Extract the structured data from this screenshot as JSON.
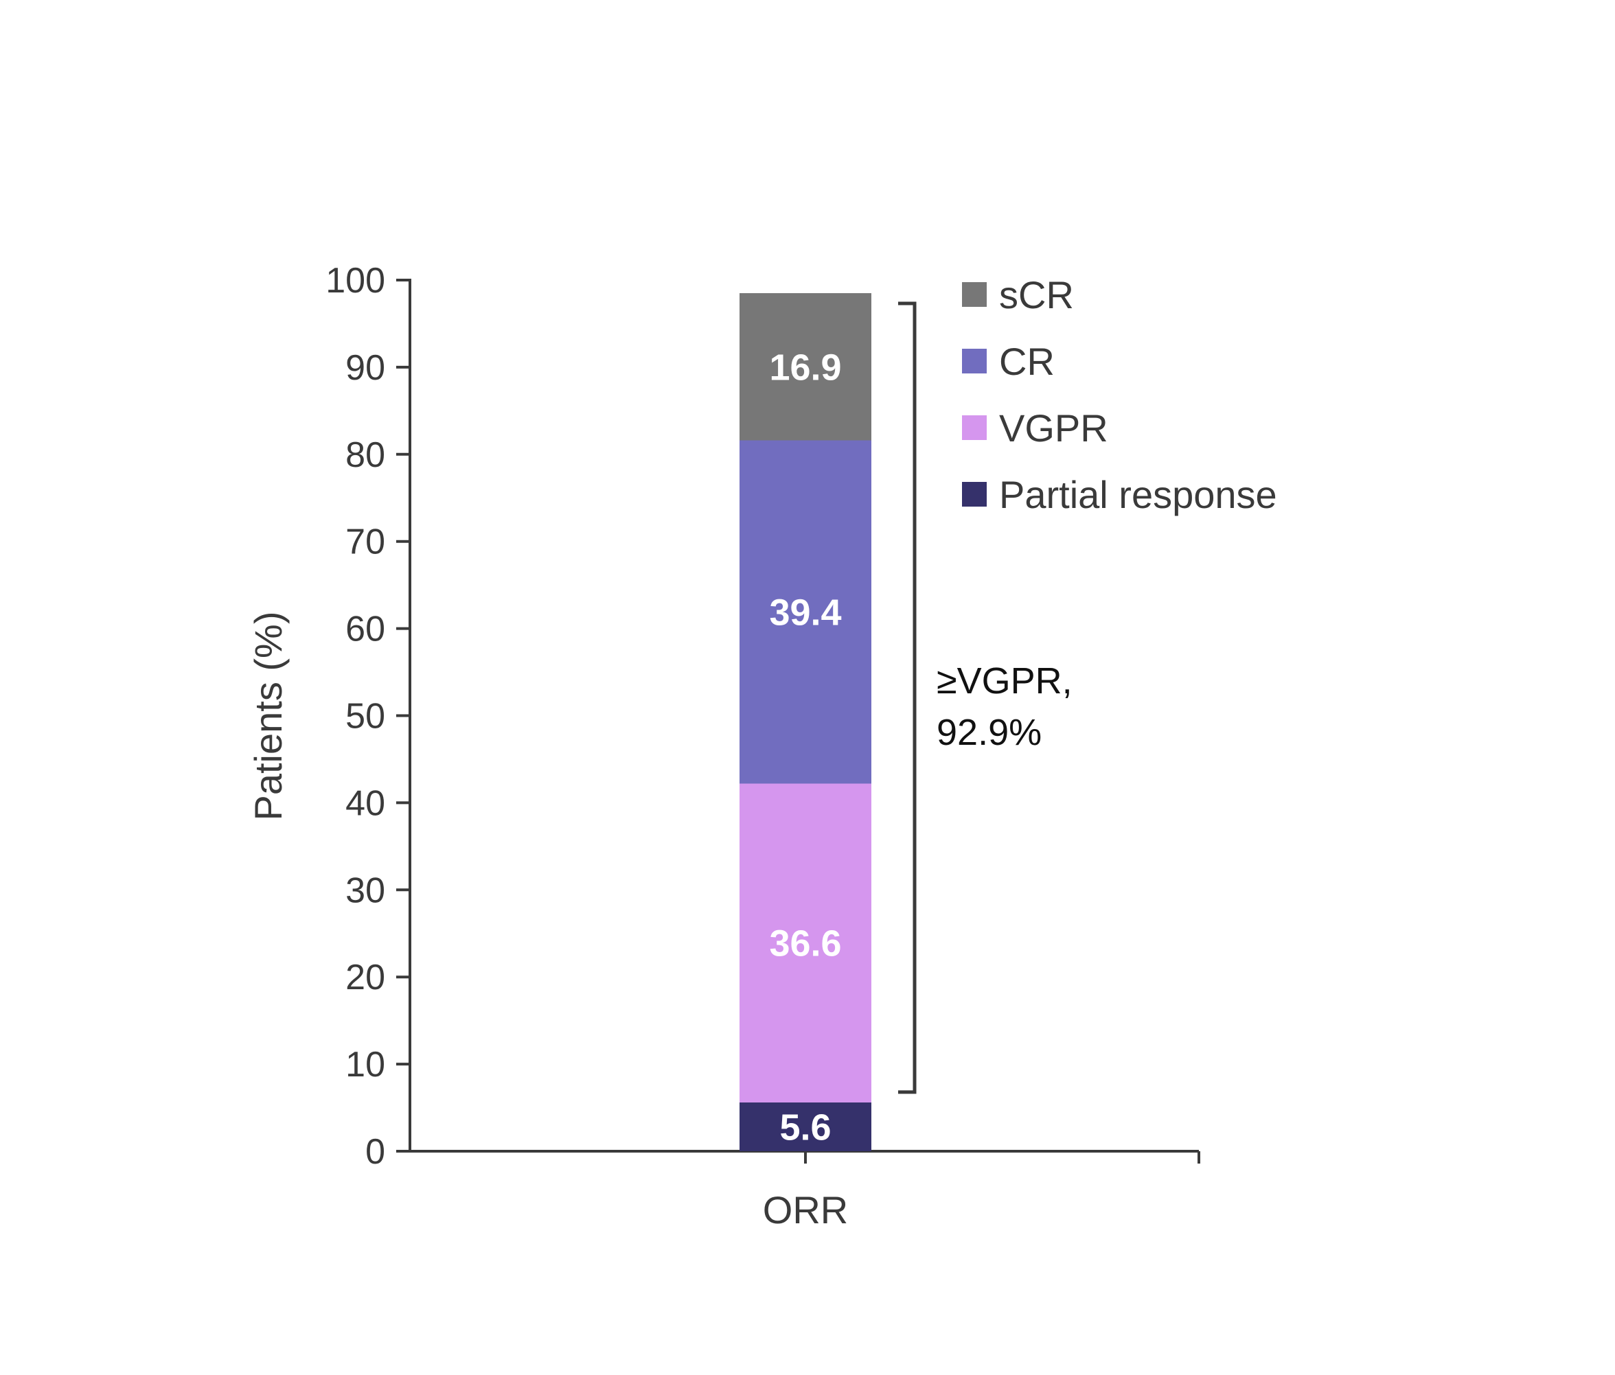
{
  "chart_data": {
    "type": "bar",
    "stacked": true,
    "categories": [
      "ORR"
    ],
    "series": [
      {
        "name": "Partial response",
        "values": [
          5.6
        ],
        "color": "#35316b"
      },
      {
        "name": "VGPR",
        "values": [
          36.6
        ],
        "color": "#d596ee"
      },
      {
        "name": "CR",
        "values": [
          39.4
        ],
        "color": "#716dbf"
      },
      {
        "name": "sCR",
        "values": [
          16.9
        ],
        "color": "#777777"
      }
    ],
    "data_labels": [
      "5.6",
      "36.6",
      "39.4",
      "16.9"
    ],
    "legend_order": [
      "sCR",
      "CR",
      "VGPR",
      "Partial response"
    ],
    "legend_placement": "top-right",
    "ylabel": "Patients (%)",
    "xlabel": "",
    "ylim": [
      0,
      100
    ],
    "yticks": [
      0,
      10,
      20,
      30,
      40,
      50,
      60,
      70,
      80,
      90,
      100
    ],
    "grid": false,
    "annotation": {
      "line1": "≥VGPR,",
      "line2": "92.9%",
      "range": [
        5.6,
        98.5
      ]
    }
  }
}
